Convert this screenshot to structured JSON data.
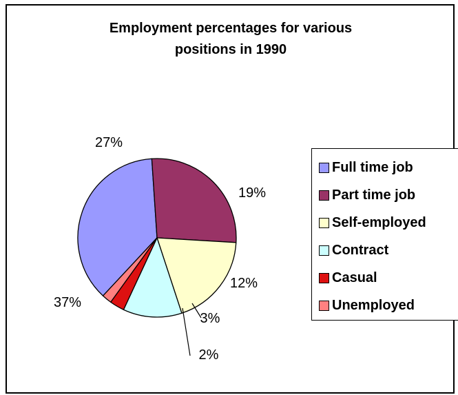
{
  "chart_data": {
    "type": "pie",
    "title": "Employment percentages for various positions in 1990",
    "title_lines": [
      "Employment percentages for various",
      "positions in 1990"
    ],
    "legend_position": "right",
    "slices": [
      {
        "name": "Full time job",
        "value": 37,
        "label": "37%",
        "color": "#9999FF"
      },
      {
        "name": "Part time job",
        "value": 27,
        "label": "27%",
        "color": "#993366"
      },
      {
        "name": "Self-employed",
        "value": 19,
        "label": "19%",
        "color": "#FFFFCC"
      },
      {
        "name": "Contract",
        "value": 12,
        "label": "12%",
        "color": "#CCFFFF"
      },
      {
        "name": "Casual",
        "value": 3,
        "label": "3%",
        "color": "#DD1111"
      },
      {
        "name": "Unemployed",
        "value": 2,
        "label": "2%",
        "color": "#FF8080"
      }
    ]
  }
}
